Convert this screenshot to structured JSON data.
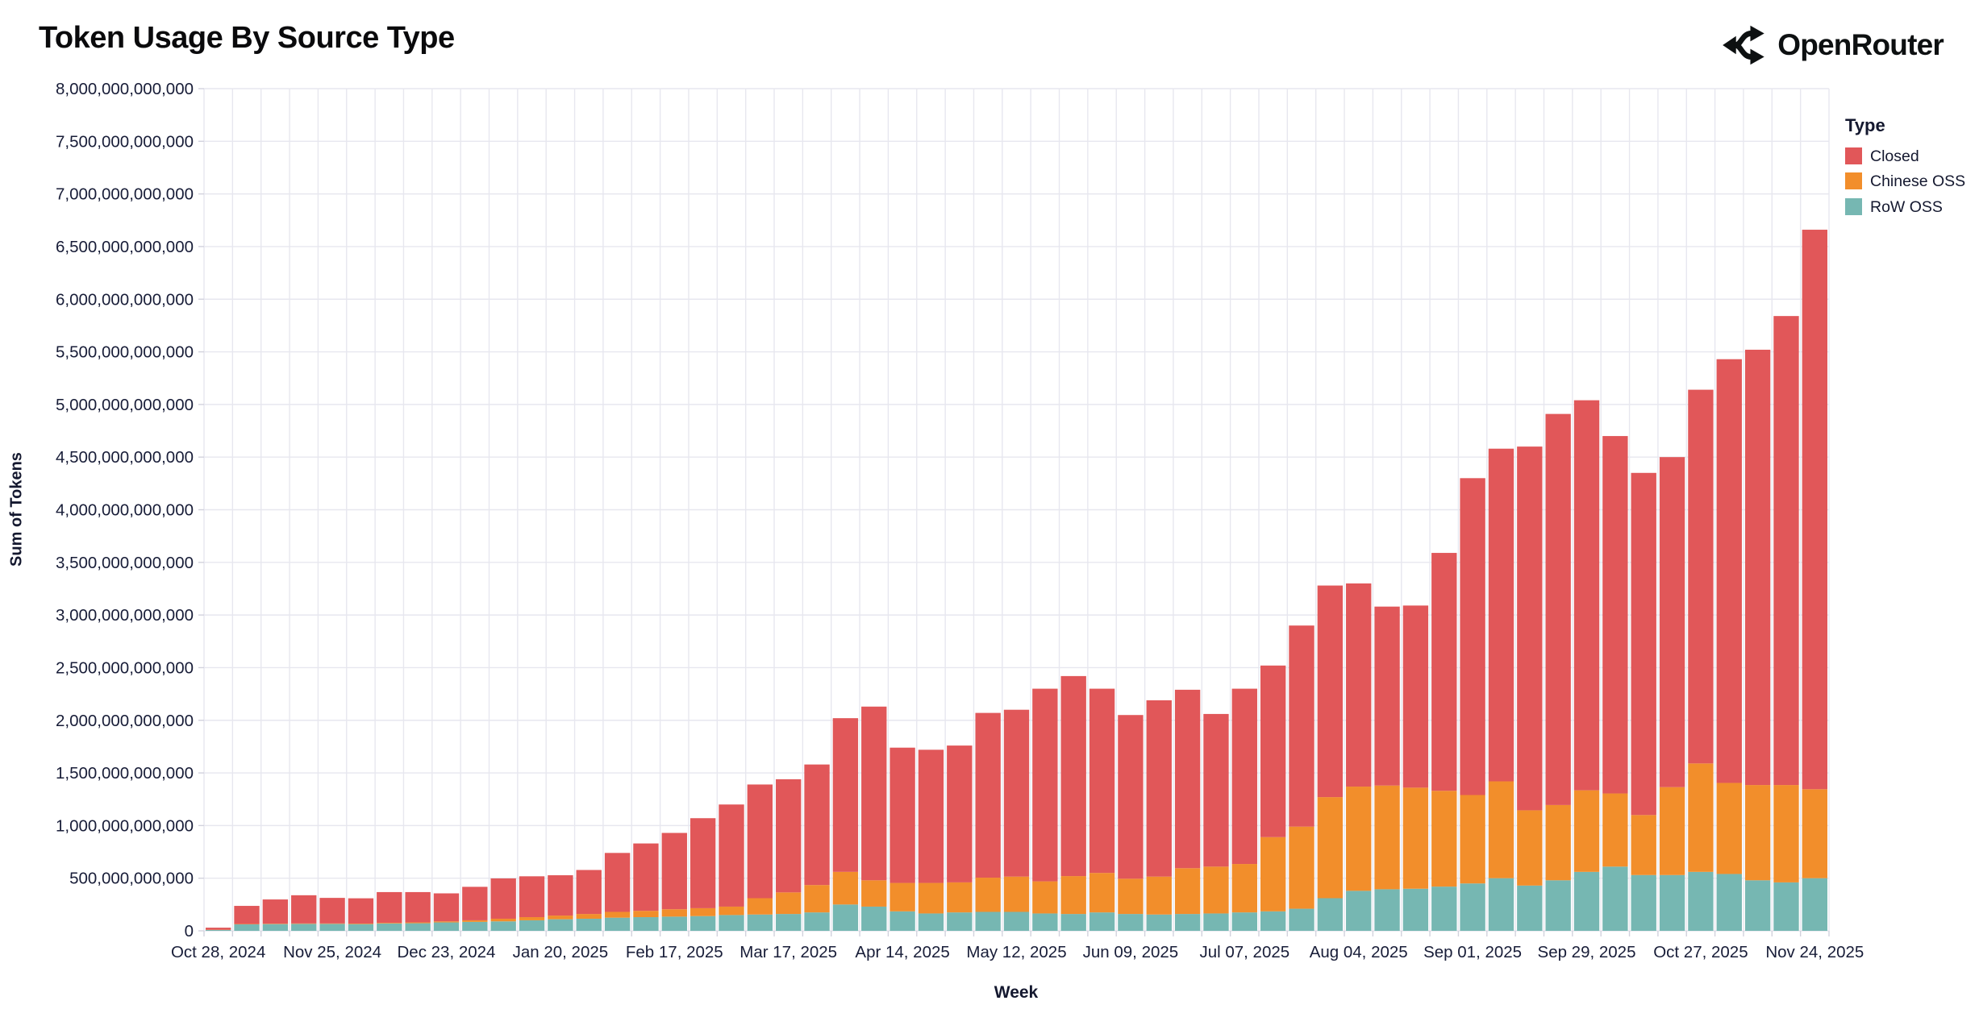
{
  "page": {
    "title": "Token Usage By Source Type",
    "brand": "OpenRouter"
  },
  "chart_data": {
    "type": "bar",
    "stacked": true,
    "title": "Token Usage By Source Type",
    "xlabel": "Week",
    "ylabel": "Sum of Tokens",
    "value_unit": "billions of tokens",
    "ylim": [
      0,
      8000
    ],
    "y_tick_step": 500,
    "grid": true,
    "y_tick_labels": [
      "0",
      "500,000,000,000",
      "1,000,000,000,000",
      "1,500,000,000,000",
      "2,000,000,000,000",
      "2,500,000,000,000",
      "3,000,000,000,000",
      "3,500,000,000,000",
      "4,000,000,000,000",
      "4,500,000,000,000",
      "5,000,000,000,000",
      "5,500,000,000,000",
      "6,000,000,000,000",
      "6,500,000,000,000",
      "7,000,000,000,000",
      "7,500,000,000,000",
      "8,000,000,000,000"
    ],
    "x": [
      "Oct 28, 2024",
      "Nov 04, 2024",
      "Nov 11, 2024",
      "Nov 18, 2024",
      "Nov 25, 2024",
      "Dec 02, 2024",
      "Dec 09, 2024",
      "Dec 16, 2024",
      "Dec 23, 2024",
      "Dec 30, 2024",
      "Jan 06, 2025",
      "Jan 13, 2025",
      "Jan 20, 2025",
      "Jan 27, 2025",
      "Feb 03, 2025",
      "Feb 10, 2025",
      "Feb 17, 2025",
      "Feb 24, 2025",
      "Mar 03, 2025",
      "Mar 10, 2025",
      "Mar 17, 2025",
      "Mar 24, 2025",
      "Mar 31, 2025",
      "Apr 07, 2025",
      "Apr 14, 2025",
      "Apr 21, 2025",
      "Apr 28, 2025",
      "May 05, 2025",
      "May 12, 2025",
      "May 19, 2025",
      "May 26, 2025",
      "Jun 02, 2025",
      "Jun 09, 2025",
      "Jun 16, 2025",
      "Jun 23, 2025",
      "Jun 30, 2025",
      "Jul 07, 2025",
      "Jul 14, 2025",
      "Jul 21, 2025",
      "Jul 28, 2025",
      "Aug 04, 2025",
      "Aug 11, 2025",
      "Aug 18, 2025",
      "Aug 25, 2025",
      "Sep 01, 2025",
      "Sep 08, 2025",
      "Sep 15, 2025",
      "Sep 22, 2025",
      "Sep 29, 2025",
      "Oct 06, 2025",
      "Oct 13, 2025",
      "Oct 20, 2025",
      "Oct 27, 2025",
      "Nov 03, 2025",
      "Nov 10, 2025",
      "Nov 17, 2025",
      "Nov 24, 2025"
    ],
    "x_tick_every": 4,
    "x_tick_labels": [
      "Oct 28, 2024",
      "Nov 25, 2024",
      "Dec 23, 2024",
      "Jan 20, 2025",
      "Feb 17, 2025",
      "Mar 17, 2025",
      "Apr 14, 2025",
      "May 12, 2025",
      "Jun 09, 2025",
      "Jul 07, 2025",
      "Aug 04, 2025",
      "Sep 01, 2025",
      "Sep 29, 2025",
      "Oct 27, 2025",
      "Nov 24, 2025"
    ],
    "legend": {
      "title": "Type",
      "position": "top-right"
    },
    "stack_order_bottom_to_top": [
      "RoW OSS",
      "Chinese OSS",
      "Closed"
    ],
    "series": [
      {
        "name": "Closed",
        "color": "#E15759",
        "values": [
          20,
          172,
          230,
          268,
          243,
          240,
          292,
          288,
          266,
          318,
          383,
          388,
          383,
          418,
          560,
          640,
          725,
          855,
          970,
          1080,
          1075,
          1145,
          1460,
          1650,
          1285,
          1265,
          1300,
          1565,
          1585,
          1830,
          1900,
          1750,
          1555,
          1675,
          1695,
          1450,
          1665,
          1630,
          1910,
          2010,
          1930,
          1700,
          1730,
          2260,
          3010,
          3160,
          3455,
          3715,
          3705,
          3395,
          3250,
          3135,
          3550,
          4025,
          4135,
          4455,
          5315
        ]
      },
      {
        "name": "Chinese OSS",
        "color": "#F28E2B",
        "values": [
          2,
          3,
          4,
          4,
          4,
          5,
          6,
          8,
          10,
          15,
          25,
          30,
          35,
          45,
          55,
          60,
          70,
          75,
          80,
          155,
          205,
          260,
          310,
          250,
          270,
          290,
          285,
          325,
          335,
          305,
          360,
          375,
          335,
          360,
          435,
          445,
          460,
          705,
          780,
          960,
          990,
          985,
          960,
          910,
          840,
          920,
          715,
          715,
          775,
          695,
          570,
          835,
          1030,
          865,
          905,
          925,
          845
        ]
      },
      {
        "name": "RoW OSS",
        "color": "#76B7B2",
        "values": [
          8,
          62,
          64,
          66,
          66,
          64,
          70,
          72,
          80,
          85,
          90,
          100,
          110,
          115,
          125,
          130,
          135,
          140,
          150,
          155,
          160,
          175,
          250,
          230,
          185,
          165,
          175,
          180,
          180,
          165,
          160,
          175,
          160,
          155,
          160,
          165,
          175,
          185,
          210,
          310,
          380,
          395,
          400,
          420,
          450,
          500,
          430,
          480,
          560,
          610,
          530,
          530,
          560,
          540,
          480,
          460,
          500
        ]
      }
    ],
    "colors": {
      "grid": "#e7e7ef",
      "tick": "#d2d2dd",
      "axis_text": "#181d38"
    }
  }
}
